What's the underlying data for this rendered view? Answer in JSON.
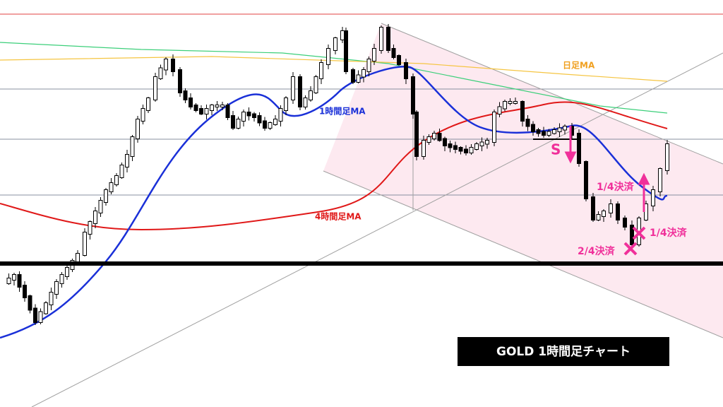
{
  "annotations": {
    "daily_ma": "日足MA",
    "hourly_ma": "1時間足MA",
    "four_hour_ma": "4時間足MA",
    "sell": "S",
    "settle_a": "1/4決済",
    "settle_b": "1/4決済",
    "settle_c": "2/4決済"
  },
  "title": "GOLD  1時間足チャート"
}
